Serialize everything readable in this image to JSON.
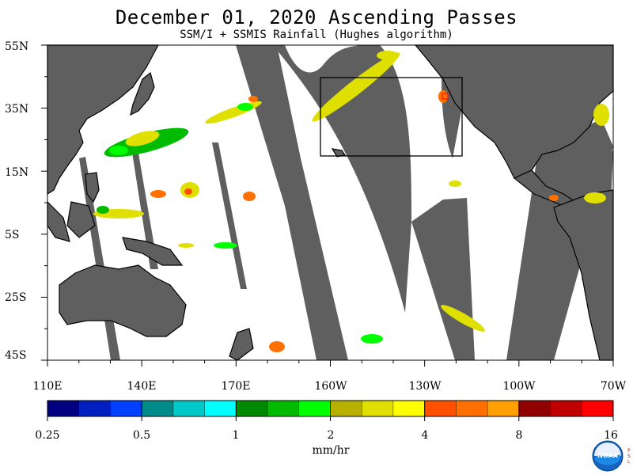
{
  "header": {
    "title": "December 01, 2020  Ascending Passes",
    "subtitle": "SSM/I + SSMIS Rainfall (Hughes algorithm)"
  },
  "map": {
    "latitude_labels": [
      "55N",
      "35N",
      "15N",
      "5S",
      "25S",
      "45S"
    ],
    "longitude_labels": [
      "110E",
      "140E",
      "170E",
      "160W",
      "130W",
      "100W",
      "70W"
    ],
    "colors": {
      "land": "#5f5f5f",
      "no_data_swath_gap": "#5f5f5f",
      "ocean": "#ffffff",
      "coastline": "#000000"
    }
  },
  "colorbar": {
    "tick_labels": [
      "0.25",
      "0.5",
      "1",
      "2",
      "4",
      "8",
      "16"
    ],
    "units": "mm/hr",
    "colors": [
      "#000080",
      "#0020c0",
      "#0040ff",
      "#008b8b",
      "#00c8c8",
      "#00ffff",
      "#008800",
      "#00bb00",
      "#00ff00",
      "#b8b000",
      "#e0e000",
      "#ffff00",
      "#ff5000",
      "#ff7000",
      "#ffa000",
      "#900000",
      "#c00000",
      "#ff0000"
    ]
  },
  "logo": {
    "text": "NOAA",
    "side_text": [
      "P",
      "S",
      "L"
    ]
  }
}
